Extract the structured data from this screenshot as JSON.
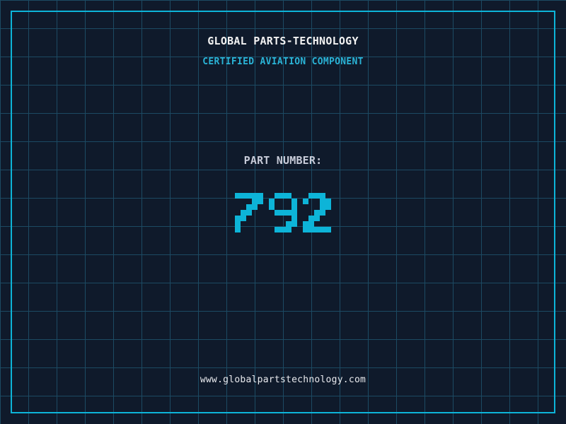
{
  "header": {
    "title": "GLOBAL PARTS-TECHNOLOGY",
    "subtitle": "CERTIFIED AVIATION COMPONENT"
  },
  "part": {
    "label": "PART NUMBER:",
    "number": "792"
  },
  "footer": {
    "url": "www.globalpartstechnology.com"
  },
  "colors": {
    "background": "#0f1a2b",
    "grid_line": "#1c4a63",
    "frame": "#0db4d8",
    "title": "#f2f2f2",
    "subtitle": "#2ab3d6",
    "part_label": "#c7cbd8",
    "part_number": "#0db4d8",
    "footer": "#e9eaee"
  }
}
